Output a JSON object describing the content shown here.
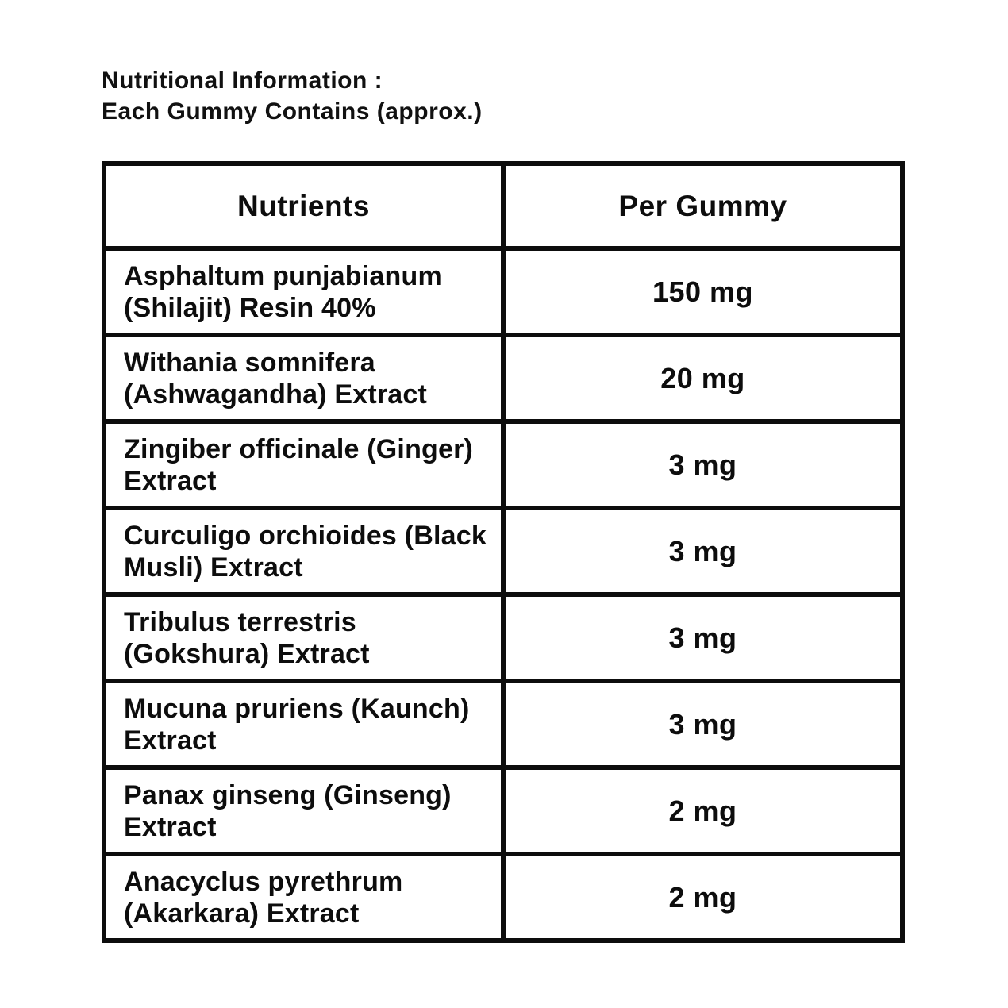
{
  "header": {
    "line1": "Nutritional Information :",
    "line2": "Each Gummy Contains (approx.)"
  },
  "table": {
    "columns": [
      "Nutrients",
      "Per Gummy"
    ],
    "rows": [
      {
        "nutrient": "Asphaltum punjabianum (Shilajit) Resin 40%",
        "amount": "150 mg"
      },
      {
        "nutrient": "Withania somnifera (Ashwagandha) Extract",
        "amount": "20 mg"
      },
      {
        "nutrient": "Zingiber officinale (Ginger) Extract",
        "amount": "3 mg"
      },
      {
        "nutrient": "Curculigo orchioides (Black Musli) Extract",
        "amount": "3 mg"
      },
      {
        "nutrient": "Tribulus terrestris (Gokshura) Extract",
        "amount": "3 mg"
      },
      {
        "nutrient": "Mucuna pruriens (Kaunch) Extract",
        "amount": "3 mg"
      },
      {
        "nutrient": "Panax ginseng (Ginseng) Extract",
        "amount": "2 mg"
      },
      {
        "nutrient": "Anacyclus pyrethrum (Akarkara) Extract",
        "amount": "2 mg"
      }
    ]
  },
  "colors": {
    "background": "#ffffff",
    "text": "#0d0d0d",
    "border": "#0d0d0d"
  }
}
